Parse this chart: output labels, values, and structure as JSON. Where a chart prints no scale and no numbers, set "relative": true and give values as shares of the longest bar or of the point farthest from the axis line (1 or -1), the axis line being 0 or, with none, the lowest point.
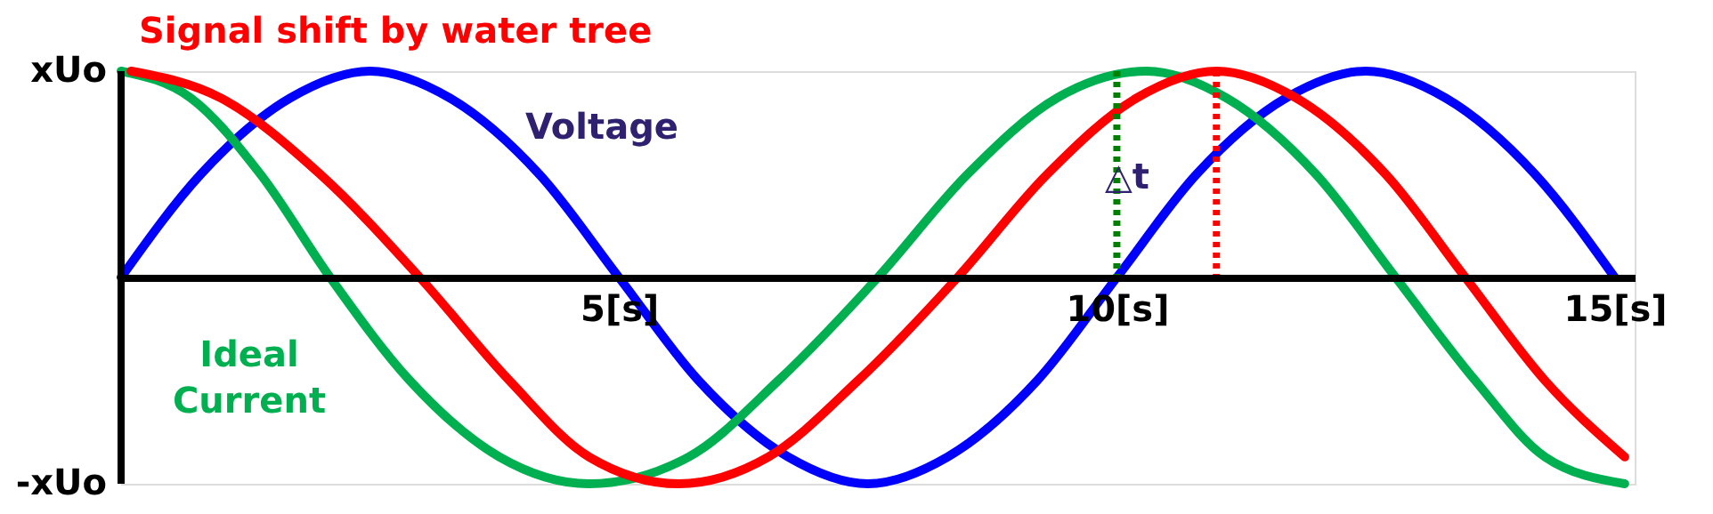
{
  "chart_data": {
    "type": "line",
    "xlim": [
      0,
      15.2
    ],
    "relative": true,
    "xticks": [
      {
        "value": 5,
        "label": "5[s]"
      },
      {
        "value": 10,
        "label": "10[s]"
      },
      {
        "value": 15,
        "label": "15[s]"
      }
    ],
    "line_style": "solid",
    "series": [
      {
        "name": "Voltage",
        "color": "#0000ff",
        "x": [
          0,
          0.8,
          1.7,
          2.5,
          3.3,
          4.2,
          5,
          5.8,
          6.7,
          7.5,
          8.3,
          9.2,
          10,
          10.8,
          11.7,
          12.5,
          13.3,
          14.2,
          15
        ],
        "values": [
          0,
          0.5,
          0.87,
          1,
          0.87,
          0.5,
          0,
          -0.5,
          -0.87,
          -1,
          -0.87,
          -0.5,
          0,
          0.5,
          0.87,
          1,
          0.87,
          0.5,
          0
        ]
      },
      {
        "name": "Ideal Current",
        "color": "#00b050",
        "x": [
          0,
          0.7,
          1.4,
          2.1,
          2.9,
          3.8,
          4.7,
          5.7,
          6.6,
          7.6,
          8.5,
          9.4,
          10.3,
          11.1,
          12,
          12.8,
          13.6,
          14.3,
          15.1
        ],
        "values": [
          1,
          0.87,
          0.5,
          0,
          -0.5,
          -0.87,
          -1,
          -0.87,
          -0.5,
          0,
          0.5,
          0.87,
          1,
          0.87,
          0.5,
          0,
          -0.5,
          -0.87,
          -1
        ]
      },
      {
        "color": "#ff0000",
        "x": [
          0.1,
          1.0,
          2.0,
          3.0,
          3.9,
          4.7,
          5.6,
          6.5,
          7.4,
          8.4,
          9.3,
          10.2,
          11.0,
          11.8,
          12.7,
          13.5,
          14.3,
          15.1
        ],
        "values": [
          1,
          0.87,
          0.5,
          0,
          -0.5,
          -0.87,
          -1,
          -0.87,
          -0.5,
          0,
          0.5,
          0.87,
          1,
          0.87,
          0.5,
          0,
          -0.5,
          -0.87
        ]
      }
    ],
    "ref_lines": [
      {
        "axis": "x",
        "value": 10,
        "color": "#008000",
        "line_style": "dotted"
      },
      {
        "axis": "x",
        "value": 11,
        "color": "#ff0000",
        "line_style": "dotted"
      }
    ],
    "annotations": [
      "Signal shift by water tree",
      "△t",
      "xUo",
      "-xUo"
    ]
  }
}
